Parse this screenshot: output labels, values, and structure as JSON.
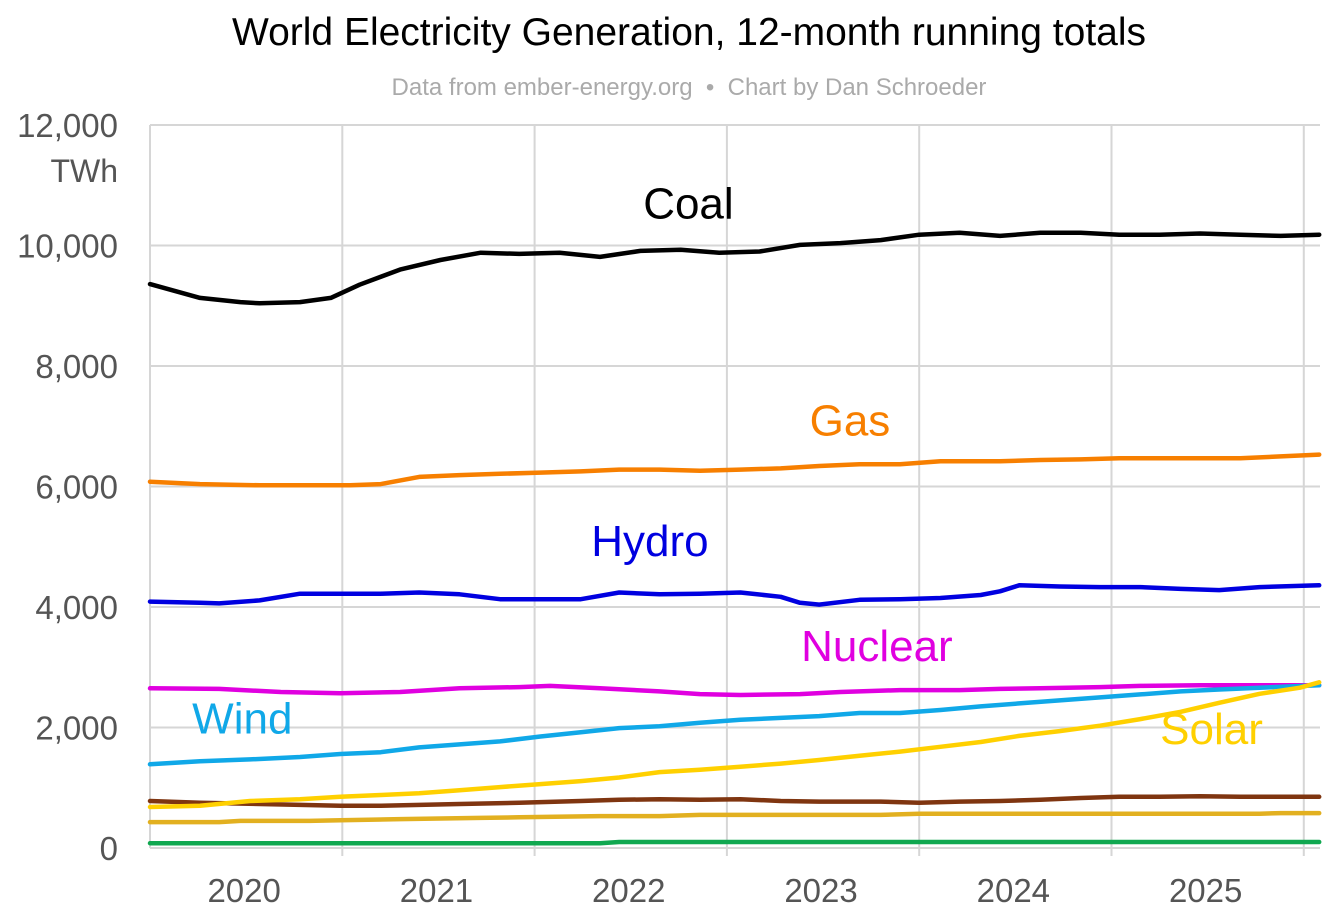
{
  "chart_data": {
    "type": "line",
    "title": "World Electricity Generation, 12-month running totals",
    "subtitle": "Data from ember-energy.org  •  Chart by Dan Schroeder",
    "ylabel": "TWh",
    "xlabel": "",
    "ylim": [
      0,
      12000
    ],
    "xlim": [
      2020.0,
      2026.08
    ],
    "grid": true,
    "legend": "inline labels",
    "y_ticks": [
      {
        "value": 0,
        "label": "0"
      },
      {
        "value": 2000,
        "label": "2,000"
      },
      {
        "value": 4000,
        "label": "4,000"
      },
      {
        "value": 6000,
        "label": "6,000"
      },
      {
        "value": 8000,
        "label": "8,000"
      },
      {
        "value": 10000,
        "label": "10,000"
      },
      {
        "value": 12000,
        "label": "12,000"
      }
    ],
    "x_gridlines": [
      2021,
      2022,
      2023,
      2024,
      2025,
      2026
    ],
    "x_ticks": [
      {
        "value": 2020.5,
        "label": "2020"
      },
      {
        "value": 2021.5,
        "label": "2021"
      },
      {
        "value": 2022.5,
        "label": "2022"
      },
      {
        "value": 2023.5,
        "label": "2023"
      },
      {
        "value": 2024.5,
        "label": "2024"
      },
      {
        "value": 2025.5,
        "label": "2025"
      }
    ],
    "series": [
      {
        "name": "Coal",
        "color": "#000000",
        "label_pos": [
          2022.8,
          10450
        ],
        "points": [
          [
            2020.0,
            9360
          ],
          [
            2020.26,
            9130
          ],
          [
            2020.47,
            9060
          ],
          [
            2020.57,
            9040
          ],
          [
            2020.78,
            9060
          ],
          [
            2020.94,
            9130
          ],
          [
            2021.09,
            9350
          ],
          [
            2021.3,
            9600
          ],
          [
            2021.51,
            9760
          ],
          [
            2021.72,
            9880
          ],
          [
            2021.92,
            9860
          ],
          [
            2022.13,
            9880
          ],
          [
            2022.34,
            9810
          ],
          [
            2022.55,
            9910
          ],
          [
            2022.76,
            9930
          ],
          [
            2022.96,
            9880
          ],
          [
            2023.17,
            9900
          ],
          [
            2023.38,
            10010
          ],
          [
            2023.59,
            10040
          ],
          [
            2023.8,
            10090
          ],
          [
            2024.0,
            10180
          ],
          [
            2024.21,
            10210
          ],
          [
            2024.42,
            10160
          ],
          [
            2024.63,
            10210
          ],
          [
            2024.84,
            10210
          ],
          [
            2025.04,
            10180
          ],
          [
            2025.25,
            10180
          ],
          [
            2025.46,
            10200
          ],
          [
            2025.67,
            10180
          ],
          [
            2025.88,
            10160
          ],
          [
            2026.08,
            10180
          ]
        ]
      },
      {
        "name": "Gas",
        "color": "#f77f00",
        "label_pos": [
          2023.64,
          6850
        ],
        "points": [
          [
            2020.0,
            6080
          ],
          [
            2020.26,
            6040
          ],
          [
            2020.57,
            6020
          ],
          [
            2020.78,
            6020
          ],
          [
            2021.04,
            6020
          ],
          [
            2021.2,
            6040
          ],
          [
            2021.4,
            6160
          ],
          [
            2021.61,
            6190
          ],
          [
            2021.82,
            6210
          ],
          [
            2022.03,
            6230
          ],
          [
            2022.24,
            6250
          ],
          [
            2022.44,
            6280
          ],
          [
            2022.65,
            6280
          ],
          [
            2022.86,
            6260
          ],
          [
            2023.07,
            6280
          ],
          [
            2023.28,
            6300
          ],
          [
            2023.48,
            6340
          ],
          [
            2023.69,
            6370
          ],
          [
            2023.9,
            6370
          ],
          [
            2024.11,
            6420
          ],
          [
            2024.42,
            6420
          ],
          [
            2024.63,
            6440
          ],
          [
            2024.84,
            6450
          ],
          [
            2025.04,
            6470
          ],
          [
            2025.25,
            6470
          ],
          [
            2025.46,
            6470
          ],
          [
            2025.67,
            6470
          ],
          [
            2025.88,
            6500
          ],
          [
            2026.08,
            6530
          ]
        ]
      },
      {
        "name": "Hydro",
        "color": "#0000e0",
        "label_pos": [
          2022.6,
          4850
        ],
        "points": [
          [
            2020.0,
            4090
          ],
          [
            2020.26,
            4070
          ],
          [
            2020.36,
            4060
          ],
          [
            2020.57,
            4110
          ],
          [
            2020.78,
            4220
          ],
          [
            2020.99,
            4220
          ],
          [
            2021.2,
            4220
          ],
          [
            2021.4,
            4240
          ],
          [
            2021.61,
            4210
          ],
          [
            2021.82,
            4130
          ],
          [
            2022.03,
            4130
          ],
          [
            2022.24,
            4130
          ],
          [
            2022.44,
            4240
          ],
          [
            2022.65,
            4210
          ],
          [
            2022.86,
            4220
          ],
          [
            2023.07,
            4240
          ],
          [
            2023.28,
            4170
          ],
          [
            2023.38,
            4070
          ],
          [
            2023.48,
            4040
          ],
          [
            2023.69,
            4120
          ],
          [
            2023.9,
            4130
          ],
          [
            2024.11,
            4150
          ],
          [
            2024.32,
            4200
          ],
          [
            2024.42,
            4260
          ],
          [
            2024.52,
            4360
          ],
          [
            2024.73,
            4340
          ],
          [
            2024.94,
            4330
          ],
          [
            2025.15,
            4330
          ],
          [
            2025.36,
            4300
          ],
          [
            2025.56,
            4280
          ],
          [
            2025.77,
            4330
          ],
          [
            2026.08,
            4360
          ]
        ]
      },
      {
        "name": "Nuclear",
        "color": "#e000e0",
        "label_pos": [
          2023.78,
          3100
        ],
        "points": [
          [
            2020.0,
            2650
          ],
          [
            2020.36,
            2640
          ],
          [
            2020.68,
            2590
          ],
          [
            2020.99,
            2570
          ],
          [
            2021.3,
            2590
          ],
          [
            2021.61,
            2650
          ],
          [
            2021.92,
            2670
          ],
          [
            2022.08,
            2690
          ],
          [
            2022.34,
            2650
          ],
          [
            2022.65,
            2600
          ],
          [
            2022.86,
            2555
          ],
          [
            2023.07,
            2540
          ],
          [
            2023.38,
            2555
          ],
          [
            2023.59,
            2590
          ],
          [
            2023.9,
            2620
          ],
          [
            2024.21,
            2620
          ],
          [
            2024.42,
            2640
          ],
          [
            2024.63,
            2650
          ],
          [
            2024.94,
            2670
          ],
          [
            2025.15,
            2690
          ],
          [
            2025.46,
            2700
          ],
          [
            2026.08,
            2700
          ]
        ]
      },
      {
        "name": "Wind",
        "color": "#10a8e8",
        "label_pos": [
          2020.48,
          1900
        ],
        "points": [
          [
            2020.0,
            1390
          ],
          [
            2020.26,
            1440
          ],
          [
            2020.52,
            1470
          ],
          [
            2020.78,
            1510
          ],
          [
            2020.99,
            1560
          ],
          [
            2021.2,
            1590
          ],
          [
            2021.4,
            1670
          ],
          [
            2021.61,
            1720
          ],
          [
            2021.82,
            1770
          ],
          [
            2022.03,
            1850
          ],
          [
            2022.24,
            1920
          ],
          [
            2022.44,
            1990
          ],
          [
            2022.65,
            2020
          ],
          [
            2022.86,
            2080
          ],
          [
            2023.07,
            2130
          ],
          [
            2023.28,
            2160
          ],
          [
            2023.48,
            2190
          ],
          [
            2023.69,
            2240
          ],
          [
            2023.9,
            2240
          ],
          [
            2024.11,
            2290
          ],
          [
            2024.32,
            2350
          ],
          [
            2024.52,
            2400
          ],
          [
            2024.73,
            2450
          ],
          [
            2024.94,
            2500
          ],
          [
            2025.15,
            2550
          ],
          [
            2025.36,
            2600
          ],
          [
            2025.56,
            2630
          ],
          [
            2025.77,
            2660
          ],
          [
            2026.08,
            2700
          ]
        ]
      },
      {
        "name": "Solar",
        "color": "#ffd000",
        "label_pos": [
          2025.52,
          1730
        ],
        "points": [
          [
            2020.0,
            680
          ],
          [
            2020.26,
            700
          ],
          [
            2020.52,
            780
          ],
          [
            2020.78,
            810
          ],
          [
            2020.99,
            850
          ],
          [
            2021.2,
            880
          ],
          [
            2021.4,
            910
          ],
          [
            2021.61,
            960
          ],
          [
            2021.82,
            1010
          ],
          [
            2022.03,
            1060
          ],
          [
            2022.24,
            1110
          ],
          [
            2022.44,
            1170
          ],
          [
            2022.65,
            1260
          ],
          [
            2022.86,
            1300
          ],
          [
            2023.07,
            1350
          ],
          [
            2023.28,
            1400
          ],
          [
            2023.48,
            1460
          ],
          [
            2023.69,
            1530
          ],
          [
            2023.9,
            1600
          ],
          [
            2024.11,
            1680
          ],
          [
            2024.32,
            1760
          ],
          [
            2024.52,
            1860
          ],
          [
            2024.73,
            1940
          ],
          [
            2024.94,
            2030
          ],
          [
            2025.15,
            2140
          ],
          [
            2025.36,
            2260
          ],
          [
            2025.56,
            2410
          ],
          [
            2025.77,
            2560
          ],
          [
            2025.98,
            2660
          ],
          [
            2026.08,
            2750
          ]
        ]
      },
      {
        "color": "#7f3510",
        "points": [
          [
            2020.0,
            780
          ],
          [
            2020.26,
            750
          ],
          [
            2020.57,
            730
          ],
          [
            2020.99,
            700
          ],
          [
            2021.2,
            700
          ],
          [
            2021.61,
            730
          ],
          [
            2021.92,
            750
          ],
          [
            2022.24,
            780
          ],
          [
            2022.44,
            800
          ],
          [
            2022.65,
            810
          ],
          [
            2022.86,
            800
          ],
          [
            2023.07,
            810
          ],
          [
            2023.28,
            780
          ],
          [
            2023.48,
            770
          ],
          [
            2023.8,
            770
          ],
          [
            2024.0,
            750
          ],
          [
            2024.21,
            770
          ],
          [
            2024.42,
            780
          ],
          [
            2024.63,
            800
          ],
          [
            2024.84,
            830
          ],
          [
            2025.04,
            850
          ],
          [
            2025.25,
            850
          ],
          [
            2025.46,
            860
          ],
          [
            2025.67,
            850
          ],
          [
            2026.08,
            850
          ]
        ]
      },
      {
        "color": "#e2b020",
        "points": [
          [
            2020.0,
            430
          ],
          [
            2020.36,
            430
          ],
          [
            2020.47,
            450
          ],
          [
            2020.83,
            450
          ],
          [
            2020.99,
            460
          ],
          [
            2021.3,
            480
          ],
          [
            2021.72,
            500
          ],
          [
            2021.92,
            510
          ],
          [
            2022.34,
            530
          ],
          [
            2022.65,
            530
          ],
          [
            2022.86,
            550
          ],
          [
            2023.8,
            550
          ],
          [
            2024.0,
            570
          ],
          [
            2024.42,
            570
          ],
          [
            2025.77,
            570
          ],
          [
            2025.88,
            580
          ],
          [
            2026.08,
            580
          ]
        ]
      },
      {
        "color": "#10a850",
        "points": [
          [
            2020.0,
            80
          ],
          [
            2022.34,
            80
          ],
          [
            2022.44,
            100
          ],
          [
            2026.08,
            100
          ]
        ]
      }
    ]
  }
}
